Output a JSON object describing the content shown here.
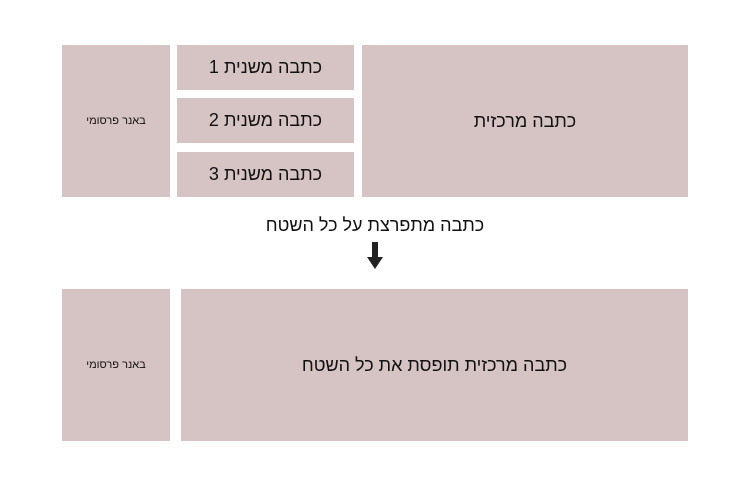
{
  "top": {
    "banner": "באנר פרסומי",
    "sub_articles": [
      "כתבה משנית 1",
      "כתבה משנית 2",
      "כתבה משנית 3"
    ],
    "main_article": "כתבה מרכזית"
  },
  "transition": {
    "label": "כתבה מתפרצת על כל השטח",
    "icon": "arrow-down-icon"
  },
  "bottom": {
    "banner": "באנר פרסומי",
    "main_article": "כתבה מרכזית תופסת את כל השטח"
  },
  "colors": {
    "box": "#d6c4c4"
  }
}
